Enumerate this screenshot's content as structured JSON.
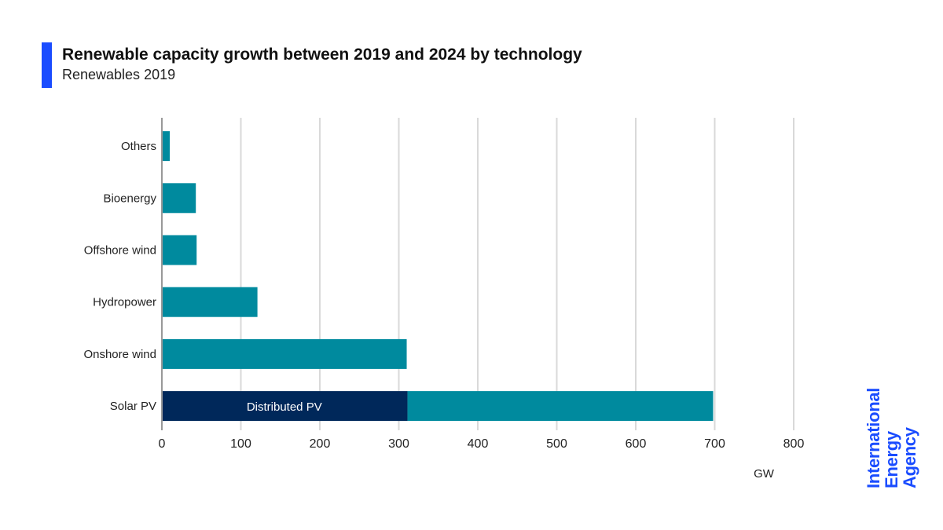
{
  "header": {
    "title": "Renewable capacity growth between 2019 and 2024 by technology",
    "subtitle": "Renewables 2019"
  },
  "logo": {
    "line1": "International",
    "line2": "Energy Agency"
  },
  "colors": {
    "accent": "#1a4cff",
    "teal": "#008a9e",
    "navy": "#00285a",
    "grid": "#d9d9d9"
  },
  "chart_data": {
    "type": "bar",
    "orientation": "horizontal",
    "stacked": true,
    "title": "Renewable capacity growth between 2019 and 2024 by technology",
    "subtitle": "Renewables 2019",
    "xlabel": "GW",
    "xlim": [
      0,
      800
    ],
    "xticks": [
      0,
      100,
      200,
      300,
      400,
      500,
      600,
      700,
      800
    ],
    "grid": true,
    "categories": [
      "Others",
      "Bioenergy",
      "Offshore wind",
      "Hydropower",
      "Onshore wind",
      "Solar PV"
    ],
    "series": [
      {
        "name": "Distributed PV",
        "color": "#00285a",
        "values": [
          0,
          0,
          0,
          0,
          0,
          310
        ]
      },
      {
        "color": "#008a9e",
        "values": [
          9,
          42,
          43,
          120,
          309,
          387
        ]
      }
    ]
  }
}
